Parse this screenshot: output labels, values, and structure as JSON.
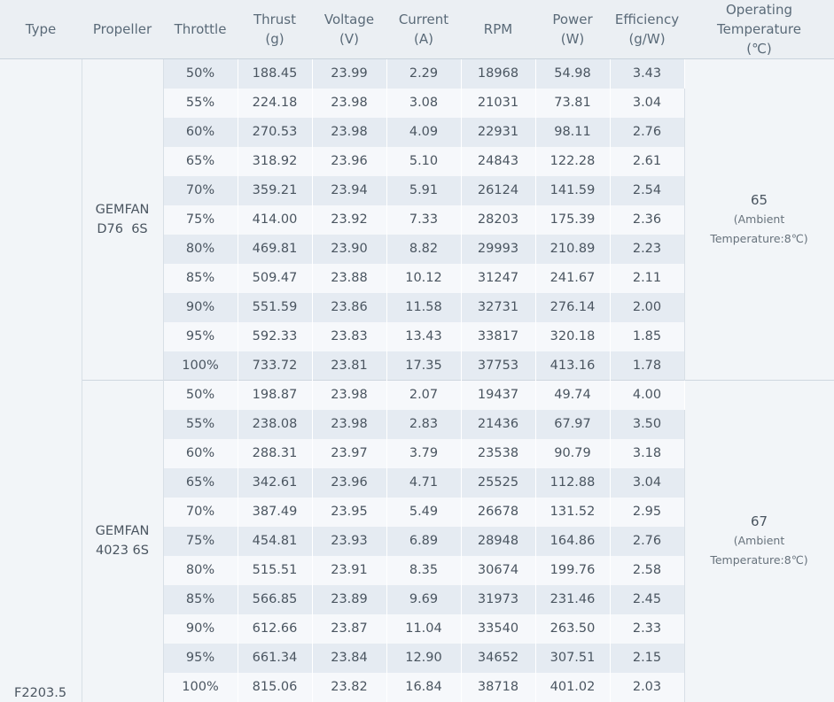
{
  "headers": [
    {
      "line1": "Type",
      "line2": "",
      "line3": ""
    },
    {
      "line1": "Propeller",
      "line2": "",
      "line3": ""
    },
    {
      "line1": "Throttle",
      "line2": "",
      "line3": ""
    },
    {
      "line1": "Thrust",
      "line2": "(g)",
      "line3": ""
    },
    {
      "line1": "Voltage",
      "line2": "(V)",
      "line3": ""
    },
    {
      "line1": "Current",
      "line2": "(A)",
      "line3": ""
    },
    {
      "line1": "RPM",
      "line2": "",
      "line3": ""
    },
    {
      "line1": "Power",
      "line2": "(W)",
      "line3": ""
    },
    {
      "line1": "Efficiency",
      "line2": "(g/W)",
      "line3": ""
    },
    {
      "line1": "Operating",
      "line2": "Temperature",
      "line3": "(℃)"
    }
  ],
  "type": "F2203.5",
  "groups": [
    {
      "propeller_line1": "GEMFAN",
      "propeller_line2": "D76  6S",
      "temperature": "65",
      "temperature_note_line1": "(Ambient",
      "temperature_note_line2": "Temperature:8℃)",
      "rows": [
        [
          "50%",
          "188.45",
          "23.99",
          "2.29",
          "18968",
          "54.98",
          "3.43"
        ],
        [
          "55%",
          "224.18",
          "23.98",
          "3.08",
          "21031",
          "73.81",
          "3.04"
        ],
        [
          "60%",
          "270.53",
          "23.98",
          "4.09",
          "22931",
          "98.11",
          "2.76"
        ],
        [
          "65%",
          "318.92",
          "23.96",
          "5.10",
          "24843",
          "122.28",
          "2.61"
        ],
        [
          "70%",
          "359.21",
          "23.94",
          "5.91",
          "26124",
          "141.59",
          "2.54"
        ],
        [
          "75%",
          "414.00",
          "23.92",
          "7.33",
          "28203",
          "175.39",
          "2.36"
        ],
        [
          "80%",
          "469.81",
          "23.90",
          "8.82",
          "29993",
          "210.89",
          "2.23"
        ],
        [
          "85%",
          "509.47",
          "23.88",
          "10.12",
          "31247",
          "241.67",
          "2.11"
        ],
        [
          "90%",
          "551.59",
          "23.86",
          "11.58",
          "32731",
          "276.14",
          "2.00"
        ],
        [
          "95%",
          "592.33",
          "23.83",
          "13.43",
          "33817",
          "320.18",
          "1.85"
        ],
        [
          "100%",
          "733.72",
          "23.81",
          "17.35",
          "37753",
          "413.16",
          "1.78"
        ]
      ]
    },
    {
      "propeller_line1": "GEMFAN",
      "propeller_line2": "4023 6S",
      "temperature": "67",
      "temperature_note_line1": "(Ambient",
      "temperature_note_line2": "Temperature:8℃)",
      "rows": [
        [
          "50%",
          "198.87",
          "23.98",
          "2.07",
          "19437",
          "49.74",
          "4.00"
        ],
        [
          "55%",
          "238.08",
          "23.98",
          "2.83",
          "21436",
          "67.97",
          "3.50"
        ],
        [
          "60%",
          "288.31",
          "23.97",
          "3.79",
          "23538",
          "90.79",
          "3.18"
        ],
        [
          "65%",
          "342.61",
          "23.96",
          "4.71",
          "25525",
          "112.88",
          "3.04"
        ],
        [
          "70%",
          "387.49",
          "23.95",
          "5.49",
          "26678",
          "131.52",
          "2.95"
        ],
        [
          "75%",
          "454.81",
          "23.93",
          "6.89",
          "28948",
          "164.86",
          "2.76"
        ],
        [
          "80%",
          "515.51",
          "23.91",
          "8.35",
          "30674",
          "199.76",
          "2.58"
        ],
        [
          "85%",
          "566.85",
          "23.89",
          "9.69",
          "31973",
          "231.46",
          "2.45"
        ],
        [
          "90%",
          "612.66",
          "23.87",
          "11.04",
          "33540",
          "263.50",
          "2.33"
        ],
        [
          "95%",
          "661.34",
          "23.84",
          "12.90",
          "34652",
          "307.51",
          "2.15"
        ],
        [
          "100%",
          "815.06",
          "23.82",
          "16.84",
          "38718",
          "401.02",
          "2.03"
        ]
      ]
    }
  ]
}
